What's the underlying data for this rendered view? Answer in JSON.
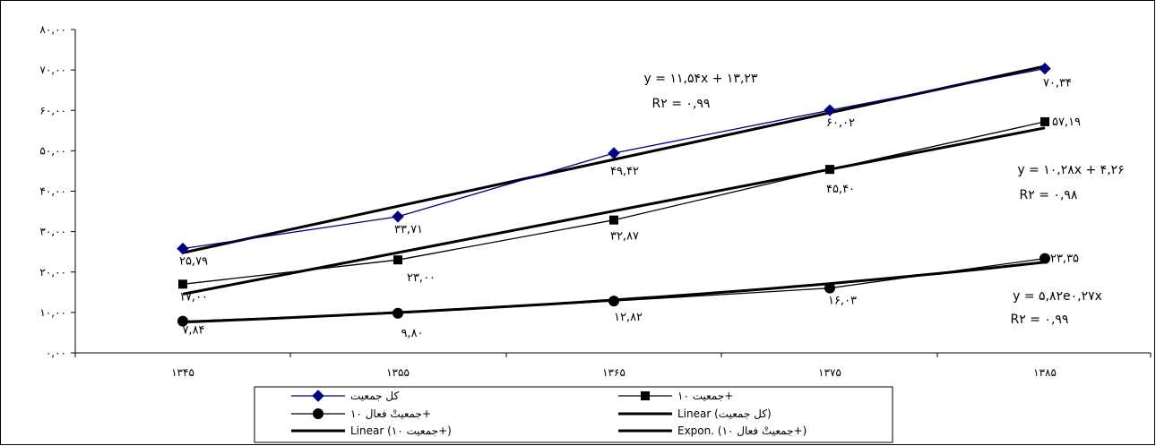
{
  "chart_data": {
    "type": "line",
    "categories": [
      "۱۳۴۵",
      "۱۳۵۵",
      "۱۳۶۵",
      "۱۳۷۵",
      "۱۳۸۵"
    ],
    "ylim": [
      0,
      80
    ],
    "y_ticks": [
      0,
      10,
      20,
      30,
      40,
      50,
      60,
      70,
      80
    ],
    "y_tick_labels": [
      "۰,۰۰",
      "۱۰,۰۰",
      "۲۰,۰۰",
      "۳۰,۰۰",
      "۴۰,۰۰",
      "۵۰,۰۰",
      "۶۰,۰۰",
      "۷۰,۰۰",
      "۸۰,۰۰"
    ],
    "grid": false,
    "legend_position": "bottom",
    "series": [
      {
        "name": "کل جمعیت",
        "values": [
          25.79,
          33.71,
          49.42,
          60.02,
          70.34
        ],
        "value_labels": [
          "۲۵,۷۹",
          "۳۳,۷۱",
          "۴۹,۴۲",
          "۶۰,۰۲",
          "۷۰,۳۴"
        ],
        "color": "#000080",
        "marker": "diamond"
      },
      {
        "name": "جمعیت ۱۰+",
        "values": [
          17.0,
          23.0,
          32.87,
          45.4,
          57.19
        ],
        "value_labels": [
          "۱۷,۰۰",
          "۲۳,۰۰",
          "۳۲,۸۷",
          "۴۵,۴۰",
          "۵۷,۱۹"
        ],
        "color": "#000000",
        "marker": "square"
      },
      {
        "name": "جمعیتْ فعال ۱۰+",
        "values": [
          7.84,
          9.8,
          12.82,
          16.03,
          23.35
        ],
        "value_labels": [
          "۷,۸۴",
          "۹,۸۰",
          "۱۲,۸۲",
          "۱۶,۰۳",
          "۲۳,۳۵"
        ],
        "color": "#000000",
        "marker": "circle"
      }
    ],
    "trendlines": [
      {
        "name": "Linear (کل جمعیت)",
        "type": "linear",
        "slope": 11.54,
        "intercept": 13.23,
        "equation": "y = ۱۱,۵۴x + ۱۳,۲۳",
        "r2": "R۲ = ۰,۹۹"
      },
      {
        "name": "Linear (جمعیت ۱۰+)",
        "type": "linear",
        "slope": 10.28,
        "intercept": 4.26,
        "equation": "y = ۱۰,۲۸x + ۴,۲۶",
        "r2": "R۲ = ۰,۹۸"
      },
      {
        "name": "Expon. (جمعیتْ فعال ۱۰+)",
        "type": "exponential",
        "a": 5.82,
        "b": 0.27,
        "equation": "y = ۵,۸۲e۰,۲۷x",
        "r2": "R۲ = ۰,۹۹"
      }
    ]
  },
  "legend": {
    "items": [
      {
        "label": "کل جمعیت",
        "kind": "series",
        "series_index": 0
      },
      {
        "label": "جمعیت ۱۰+",
        "kind": "series",
        "series_index": 1
      },
      {
        "label": "جمعیتْ فعال ۱۰+",
        "kind": "series",
        "series_index": 2
      },
      {
        "label": "Linear (کل جمعیت)",
        "kind": "trend"
      },
      {
        "label": "Linear (جمعیت ۱۰+)",
        "kind": "trend"
      },
      {
        "label": "Expon. (جمعیتْ فعال ۱۰+)",
        "kind": "trend"
      }
    ]
  }
}
